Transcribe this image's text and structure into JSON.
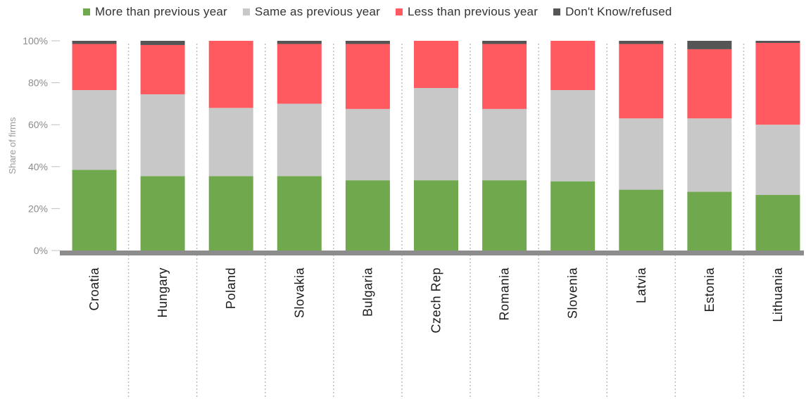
{
  "chart_data": {
    "type": "bar",
    "stacked": true,
    "categories": [
      "Croatia",
      "Hungary",
      "Poland",
      "Slovakia",
      "Bulgaria",
      "Czech Rep",
      "Romania",
      "Slovenia",
      "Latvia",
      "Estonia",
      "Lithuania"
    ],
    "series": [
      {
        "name": "More than previous year",
        "color": "#70a84d",
        "values": [
          38.5,
          35.5,
          35.5,
          35.5,
          33.5,
          33.5,
          33.5,
          33,
          29,
          28,
          26.5
        ]
      },
      {
        "name": "Same as previous year",
        "color": "#c8c8c8",
        "values": [
          38,
          39,
          32.5,
          34.5,
          34,
          44,
          34,
          43.5,
          34,
          35,
          33.5
        ]
      },
      {
        "name": "Less than previous year",
        "color": "#ff5a5f",
        "values": [
          22,
          23.5,
          32,
          28.5,
          31,
          22.5,
          31,
          23.5,
          35.5,
          33,
          39
        ]
      },
      {
        "name": "Don't Know/refused",
        "color": "#555555",
        "values": [
          1.5,
          2,
          0,
          1.5,
          1.5,
          0,
          1.5,
          0,
          1.5,
          4,
          1
        ]
      }
    ],
    "ylabel": "Share of firms",
    "xlabel": "",
    "ylim": [
      0,
      100
    ],
    "yticks": [
      "0%",
      "20%",
      "40%",
      "60%",
      "80%",
      "100%"
    ],
    "legend_position": "top",
    "grid": false
  }
}
